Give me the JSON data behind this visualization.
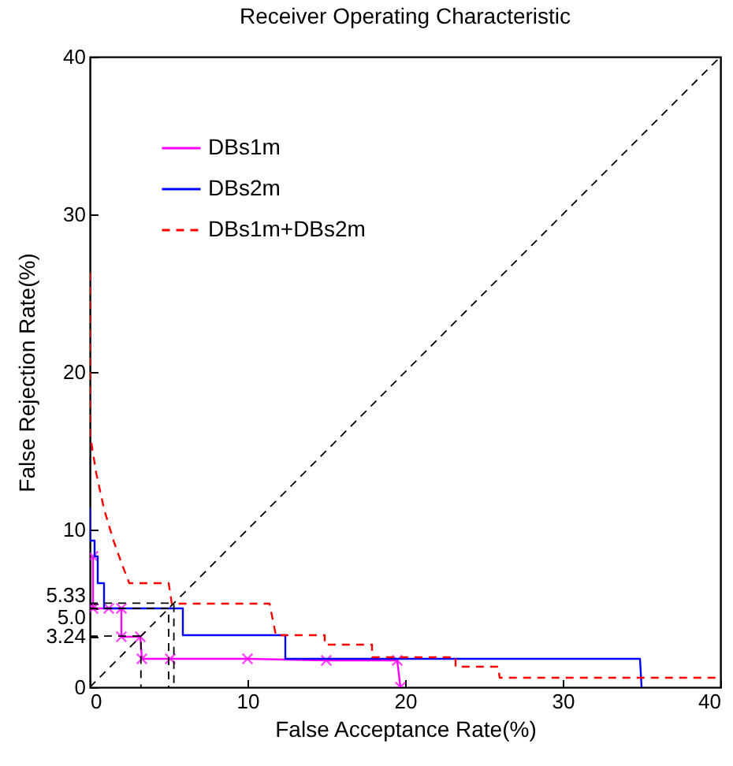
{
  "chart_data": {
    "type": "line",
    "title": "Receiver Operating Characteristic",
    "xlabel": "False Acceptance Rate(%)",
    "ylabel": "False Rejection Rate(%)",
    "xlim": [
      0,
      40
    ],
    "ylim": [
      0,
      40
    ],
    "xticks": [
      0,
      10,
      20,
      30,
      40
    ],
    "yticks": [
      0,
      {
        "value": 3.24,
        "label": "3.24"
      },
      {
        "value": 5,
        "label": "5.0"
      },
      {
        "value": 5.33,
        "label": "5.33"
      },
      10,
      20,
      30,
      40
    ],
    "grid": false,
    "legend": "top left",
    "series": [
      {
        "name": "DBs1m",
        "color": "#ff00ff",
        "marker": "cross",
        "line_style": "solid",
        "x": [
          0.2,
          0.2,
          1.2,
          2.0,
          2.0,
          3.2,
          3.3,
          5.1,
          10,
          15,
          19.5,
          19.7
        ],
        "values": [
          8.3,
          5.0,
          5.0,
          5.0,
          3.2,
          3.2,
          1.8,
          1.8,
          1.8,
          1.7,
          1.7,
          0
        ]
      },
      {
        "name": "DBs2m",
        "color": "#0000ff",
        "line_style": "solid",
        "x": [
          0,
          0,
          0.3,
          0.3,
          0.5,
          0.5,
          0.9,
          0.9,
          5.9,
          5.9,
          12.4,
          12.4,
          34.9,
          35.0
        ],
        "values": [
          11.4,
          9.3,
          9.3,
          8.3,
          8.3,
          6.6,
          6.6,
          5.0,
          5.0,
          3.3,
          3.3,
          1.8,
          1.8,
          0
        ]
      },
      {
        "name": "DBs1m+DBs2m",
        "color": "#ff0000",
        "line_style": "dashed",
        "x": [
          0,
          0,
          0.4,
          0.9,
          1.5,
          2.0,
          2.5,
          5.0,
          5.2,
          11.4,
          11.8,
          14.9,
          14.9,
          17.9,
          17.9,
          23.2,
          23.2,
          25.9,
          26.0,
          40
        ],
        "values": [
          26.3,
          16.1,
          13.6,
          11.3,
          9.3,
          7.9,
          6.6,
          6.6,
          5.3,
          5.3,
          3.3,
          3.3,
          2.7,
          2.7,
          1.9,
          1.9,
          1.3,
          1.3,
          0.6,
          0.6
        ]
      },
      {
        "color": "#000000",
        "line_style": "dashed",
        "x": [
          0,
          40
        ],
        "values": [
          0,
          40
        ]
      },
      {
        "color": "#000000",
        "line_style": "dashed",
        "x": [
          0,
          3.24,
          3.24
        ],
        "values": [
          3.24,
          3.24,
          0
        ]
      },
      {
        "color": "#000000",
        "line_style": "dashed",
        "x": [
          0,
          5.0,
          5.0
        ],
        "values": [
          5.0,
          5.0,
          0
        ]
      },
      {
        "color": "#000000",
        "line_style": "dashed",
        "x": [
          0,
          5.33,
          5.33
        ],
        "values": [
          5.33,
          5.33,
          0
        ]
      }
    ]
  }
}
